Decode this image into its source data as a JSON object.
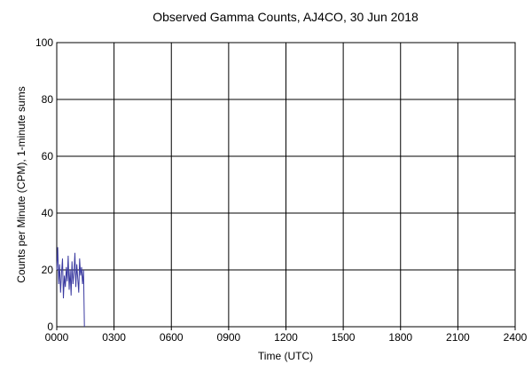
{
  "chart_data": {
    "type": "line",
    "title": "Observed Gamma Counts, AJ4CO, 30 Jun 2018",
    "x_label": "Time (UTC)",
    "y_label": "Counts per Minute (CPM), 1-minute sums",
    "x": [
      0,
      0.05,
      0.1,
      0.15,
      0.2,
      0.25,
      0.3,
      0.35,
      0.4,
      0.45,
      0.5,
      0.55,
      0.6,
      0.65,
      0.7,
      0.75,
      0.8,
      0.85,
      0.9,
      0.95,
      1.0,
      1.05,
      1.1,
      1.15,
      1.2,
      1.25,
      1.3,
      1.35,
      1.4,
      1.45
    ],
    "series": [
      {
        "name": "CPM",
        "color": "#3a3aa0",
        "values": [
          20,
          28,
          15,
          22,
          12,
          19,
          24,
          10,
          18,
          14,
          21,
          16,
          25,
          13,
          20,
          11,
          23,
          15,
          19,
          26,
          14,
          22,
          17,
          12,
          24,
          18,
          21,
          15,
          20,
          0
        ]
      }
    ],
    "xlim": [
      0,
      24
    ],
    "xticks": [
      {
        "value": 0,
        "label": "0000"
      },
      {
        "value": 3,
        "label": "0300"
      },
      {
        "value": 6,
        "label": "0600"
      },
      {
        "value": 9,
        "label": "0900"
      },
      {
        "value": 12,
        "label": "1200"
      },
      {
        "value": 15,
        "label": "1500"
      },
      {
        "value": 18,
        "label": "1800"
      },
      {
        "value": 21,
        "label": "2100"
      },
      {
        "value": 24,
        "label": "2400"
      }
    ],
    "ylim": [
      0,
      100
    ],
    "yticks": [
      0,
      20,
      40,
      60,
      80,
      100
    ],
    "grid": true
  }
}
